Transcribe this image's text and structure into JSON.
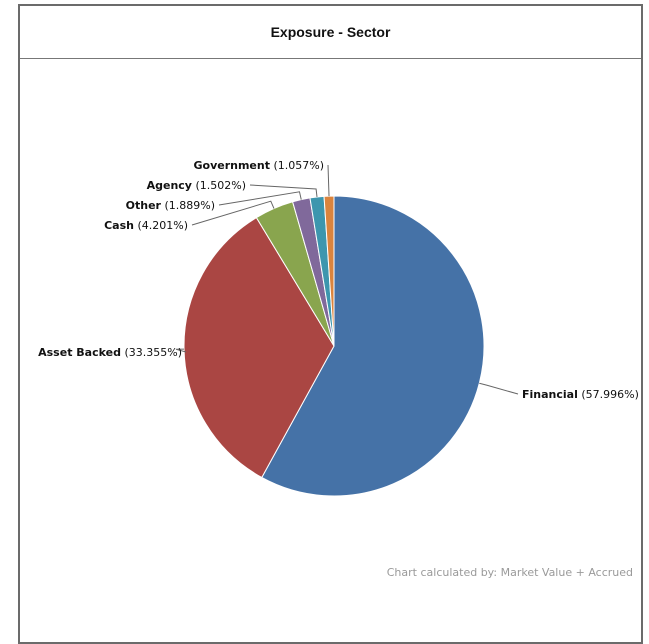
{
  "panel": {
    "title": "Exposure - Sector"
  },
  "footnote": "Chart calculated by: Market Value + Accrued",
  "colors": {
    "Financial": "#4572a7",
    "Asset Backed": "#aa4643",
    "Cash": "#89a54e",
    "Other": "#80699b",
    "Agency": "#3d96ae",
    "Government": "#db843d"
  },
  "chart_data": {
    "type": "pie",
    "title": "Exposure - Sector",
    "start_angle_deg": 0,
    "slices": [
      {
        "name": "Financial",
        "value": 57.996,
        "label": "(57.996%)"
      },
      {
        "name": "Asset Backed",
        "value": 33.355,
        "label": "(33.355%)"
      },
      {
        "name": "Cash",
        "value": 4.201,
        "label": "(4.201%)"
      },
      {
        "name": "Other",
        "value": 1.889,
        "label": "(1.889%)"
      },
      {
        "name": "Agency",
        "value": 1.502,
        "label": "(1.502%)"
      },
      {
        "name": "Government",
        "value": 1.057,
        "label": "(1.057%)"
      }
    ]
  }
}
